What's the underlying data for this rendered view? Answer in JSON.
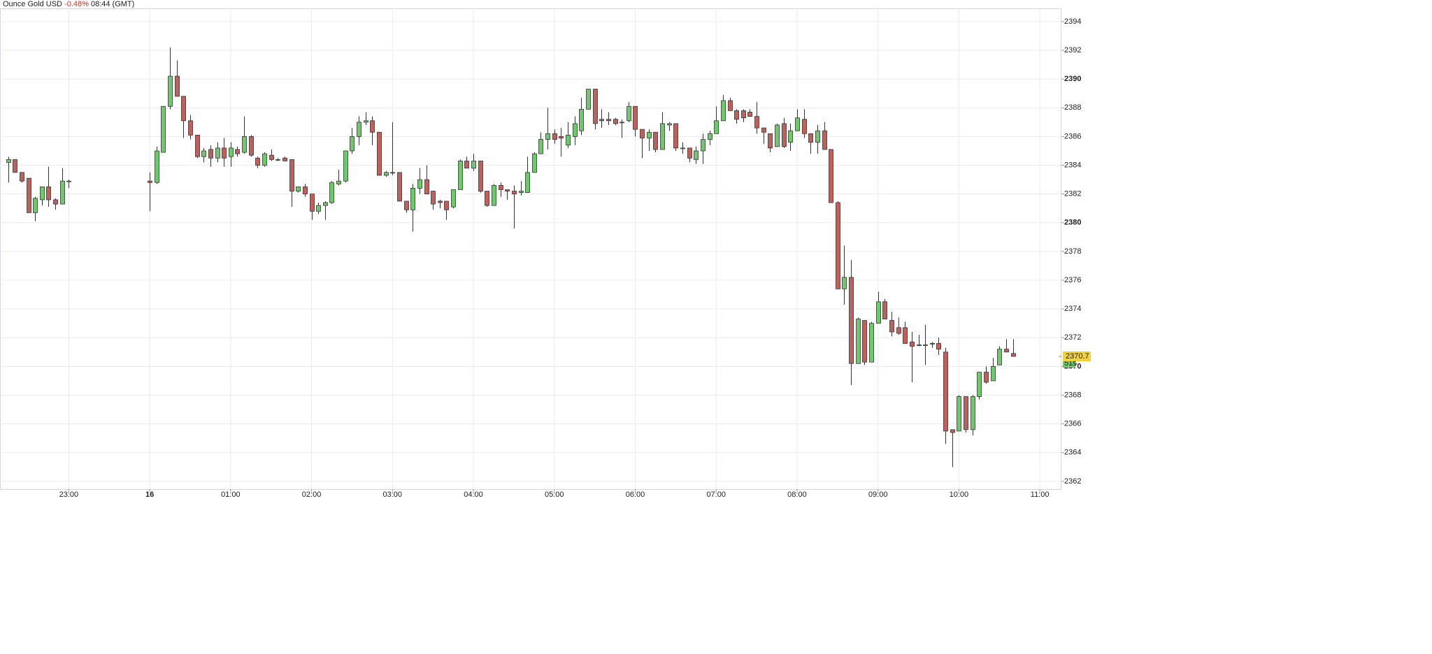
{
  "chart_data": {
    "type": "candlestick",
    "title": "Ounce Gold USD",
    "change": "-0.48%",
    "time": "08:44 (GMT)",
    "up_color": "#6fc96b",
    "down_color": "#c0605b",
    "change_color": "#c0392b",
    "last_price": 2370.7,
    "last_price_color": "#f2d13a",
    "countdown": "51s",
    "countdown_color": "#6fc96b",
    "grid": true,
    "ylim": [
      2361.46,
      2394.92
    ],
    "yticks": [
      2362,
      2364,
      2366,
      2368,
      2370,
      2372,
      2374,
      2376,
      2378,
      2380,
      2382,
      2384,
      2386,
      2388,
      2390,
      2392,
      2394
    ],
    "xlim": [
      "22:09",
      "11:16"
    ],
    "xticks": [
      {
        "value": "23:00",
        "label": "23:00"
      },
      {
        "value": "00:00",
        "label": "16"
      },
      {
        "value": "01:00",
        "label": "01:00"
      },
      {
        "value": "02:00",
        "label": "02:00"
      },
      {
        "value": "03:00",
        "label": "03:00"
      },
      {
        "value": "04:00",
        "label": "04:00"
      },
      {
        "value": "05:00",
        "label": "05:00"
      },
      {
        "value": "06:00",
        "label": "06:00"
      },
      {
        "value": "07:00",
        "label": "07:00"
      },
      {
        "value": "08:00",
        "label": "08:00"
      },
      {
        "value": "09:00",
        "label": "09:00"
      },
      {
        "value": "10:00",
        "label": "10:00"
      },
      {
        "value": "11:00",
        "label": "11:00"
      }
    ],
    "x": [
      "22:15",
      "22:20",
      "22:25",
      "22:30",
      "22:35",
      "22:40",
      "22:45",
      "22:50",
      "22:55",
      "23:00",
      "00:00",
      "00:05",
      "00:10",
      "00:15",
      "00:20",
      "00:25",
      "00:30",
      "00:35",
      "00:40",
      "00:45",
      "00:50",
      "00:55",
      "01:00",
      "01:05",
      "01:10",
      "01:15",
      "01:20",
      "01:25",
      "01:30",
      "01:35",
      "01:40",
      "01:45",
      "01:50",
      "01:55",
      "02:00",
      "02:05",
      "02:10",
      "02:15",
      "02:20",
      "02:25",
      "02:30",
      "02:35",
      "02:40",
      "02:45",
      "02:50",
      "02:55",
      "03:00",
      "03:05",
      "03:10",
      "03:15",
      "03:20",
      "03:25",
      "03:30",
      "03:35",
      "03:40",
      "03:45",
      "03:50",
      "03:55",
      "04:00",
      "04:05",
      "04:10",
      "04:15",
      "04:20",
      "04:25",
      "04:30",
      "04:35",
      "04:40",
      "04:45",
      "04:50",
      "04:55",
      "05:00",
      "05:05",
      "05:10",
      "05:15",
      "05:20",
      "05:25",
      "05:30",
      "05:35",
      "05:40",
      "05:45",
      "05:50",
      "05:55",
      "06:00",
      "06:05",
      "06:10",
      "06:15",
      "06:20",
      "06:25",
      "06:30",
      "06:35",
      "06:40",
      "06:45",
      "06:50",
      "06:55",
      "07:00",
      "07:05",
      "07:10",
      "07:15",
      "07:20",
      "07:25",
      "07:30",
      "07:35",
      "07:40",
      "07:45",
      "07:50",
      "07:55",
      "08:00",
      "08:05",
      "08:10",
      "08:15",
      "08:20",
      "08:25",
      "08:30",
      "08:35",
      "08:40",
      "08:45",
      "08:50",
      "08:55",
      "09:00",
      "09:05",
      "09:10",
      "09:15",
      "09:20",
      "09:25",
      "09:30",
      "09:35",
      "09:40",
      "09:45",
      "09:50",
      "09:55",
      "10:00",
      "10:05",
      "10:10",
      "10:15",
      "10:20",
      "10:25",
      "10:30",
      "10:35",
      "10:40"
    ],
    "open": [
      2384.2,
      2384.4,
      2383.5,
      2383.1,
      2380.7,
      2381.6,
      2382.5,
      2381.6,
      2381.3,
      2382.9,
      2382.9,
      2382.8,
      2384.9,
      2388.1,
      2390.2,
      2388.8,
      2387.1,
      2386.1,
      2384.6,
      2385.1,
      2384.5,
      2385.2,
      2384.6,
      2385.1,
      2384.9,
      2386.0,
      2384.5,
      2384.0,
      2384.7,
      2384.4,
      2384.5,
      2384.4,
      2382.2,
      2382.5,
      2382.0,
      2380.8,
      2381.2,
      2381.4,
      2382.7,
      2382.9,
      2385.0,
      2386.0,
      2387.0,
      2387.1,
      2386.3,
      2383.3,
      2383.5,
      2383.5,
      2381.5,
      2380.9,
      2382.4,
      2383.0,
      2382.2,
      2381.5,
      2381.5,
      2381.1,
      2382.3,
      2384.3,
      2383.8,
      2384.3,
      2382.2,
      2381.2,
      2382.6,
      2382.3,
      2382.2,
      2382.1,
      2382.1,
      2383.5,
      2384.8,
      2385.8,
      2386.2,
      2386.0,
      2385.4,
      2386.0,
      2386.4,
      2387.9,
      2389.3,
      2387.2,
      2387.2,
      2387.2,
      2387.0,
      2387.1,
      2388.1,
      2386.5,
      2385.9,
      2386.3,
      2385.1,
      2386.8,
      2386.9,
      2385.2,
      2385.2,
      2384.4,
      2385.0,
      2385.8,
      2386.2,
      2387.1,
      2388.5,
      2387.8,
      2387.8,
      2387.7,
      2387.4,
      2386.6,
      2386.2,
      2385.3,
      2386.9,
      2385.6,
      2386.4,
      2387.2,
      2386.2,
      2385.6,
      2386.4,
      2385.1,
      2381.4,
      2375.4,
      2376.2,
      2370.2,
      2373.2,
      2370.3,
      2373.0,
      2374.5,
      2373.2,
      2372.7,
      2372.7,
      2371.7,
      2371.5,
      2371.5,
      2371.6,
      2371.6,
      2371.0,
      2365.6,
      2365.5,
      2367.9,
      2365.6,
      2367.9,
      2369.6,
      2369.0,
      2370.1,
      2371.2,
      2370.9
    ],
    "high": [
      2384.6,
      2384.4,
      2383.5,
      2383.1,
      2381.8,
      2382.5,
      2383.9,
      2381.7,
      2383.8,
      2383.0,
      2383.5,
      2385.3,
      2388.1,
      2392.2,
      2391.3,
      2388.8,
      2387.5,
      2386.1,
      2385.2,
      2385.4,
      2385.6,
      2385.9,
      2385.6,
      2385.3,
      2387.4,
      2386.1,
      2384.6,
      2384.9,
      2385.1,
      2384.5,
      2384.6,
      2384.4,
      2382.5,
      2382.7,
      2382.0,
      2381.4,
      2381.5,
      2382.9,
      2383.7,
      2385.0,
      2386.6,
      2387.4,
      2387.7,
      2387.4,
      2386.3,
      2383.6,
      2387.0,
      2383.5,
      2381.5,
      2382.7,
      2383.8,
      2384.0,
      2382.2,
      2381.6,
      2381.5,
      2382.3,
      2384.4,
      2384.6,
      2384.8,
      2384.3,
      2382.2,
      2382.7,
      2382.8,
      2382.3,
      2382.6,
      2382.9,
      2384.6,
      2384.9,
      2386.3,
      2388.0,
      2386.5,
      2386.6,
      2387.0,
      2387.4,
      2388.7,
      2389.3,
      2389.3,
      2387.9,
      2387.7,
      2387.3,
      2387.2,
      2388.4,
      2388.1,
      2386.5,
      2386.5,
      2386.3,
      2387.7,
      2387.0,
      2386.9,
      2385.6,
      2385.2,
      2385.3,
      2386.2,
      2386.4,
      2388.1,
      2388.9,
      2388.7,
      2387.9,
      2387.9,
      2387.9,
      2388.4,
      2386.6,
      2386.2,
      2386.9,
      2387.3,
      2386.9,
      2387.9,
      2387.9,
      2386.2,
      2386.8,
      2387.0,
      2385.1,
      2381.5,
      2378.4,
      2377.4,
      2373.4,
      2373.2,
      2373.1,
      2375.2,
      2374.7,
      2373.8,
      2373.4,
      2373.1,
      2372.4,
      2372.2,
      2372.9,
      2371.7,
      2372.0,
      2371.3,
      2365.6,
      2368.0,
      2367.9,
      2368.0,
      2369.6,
      2370.0,
      2370.6,
      2371.4,
      2371.9,
      2371.9
    ],
    "low": [
      2382.8,
      2383.5,
      2382.8,
      2380.7,
      2380.1,
      2381.2,
      2381.1,
      2380.9,
      2381.3,
      2382.4,
      2380.8,
      2382.7,
      2384.9,
      2387.9,
      2388.8,
      2385.9,
      2385.8,
      2384.5,
      2384.2,
      2383.9,
      2384.2,
      2383.9,
      2383.9,
      2384.6,
      2384.8,
      2384.6,
      2383.8,
      2383.9,
      2384.3,
      2384.3,
      2384.3,
      2381.1,
      2382.1,
      2381.8,
      2380.2,
      2380.6,
      2380.2,
      2381.3,
      2382.6,
      2382.8,
      2384.8,
      2385.4,
      2386.8,
      2385.4,
      2383.3,
      2383.2,
      2383.3,
      2381.5,
      2380.7,
      2379.4,
      2382.0,
      2382.0,
      2380.9,
      2381.0,
      2380.2,
      2381.0,
      2382.3,
      2383.8,
      2383.6,
      2382.1,
      2381.1,
      2381.2,
      2381.8,
      2381.6,
      2379.6,
      2381.9,
      2382.1,
      2383.5,
      2384.8,
      2385.1,
      2385.5,
      2384.6,
      2385.2,
      2385.4,
      2386.1,
      2387.9,
      2386.5,
      2386.6,
      2386.8,
      2386.8,
      2385.9,
      2387.0,
      2386.0,
      2384.5,
      2385.0,
      2384.9,
      2385.1,
      2386.4,
      2385.0,
      2384.8,
      2384.2,
      2384.1,
      2384.1,
      2385.4,
      2386.2,
      2387.1,
      2387.8,
      2386.9,
      2387.0,
      2387.4,
      2386.2,
      2385.5,
      2384.9,
      2385.3,
      2385.2,
      2385.0,
      2386.4,
      2385.9,
      2384.8,
      2384.8,
      2385.1,
      2381.4,
      2375.4,
      2374.3,
      2368.7,
      2370.2,
      2370.1,
      2370.3,
      2373.0,
      2373.3,
      2372.1,
      2372.2,
      2371.6,
      2368.9,
      2371.4,
      2370.1,
      2371.3,
      2370.8,
      2364.6,
      2363.0,
      2365.5,
      2365.4,
      2365.2,
      2367.7,
      2368.8,
      2369.0,
      2370.1,
      2371.0,
      2370.7
    ],
    "close": [
      2384.4,
      2383.5,
      2382.9,
      2380.7,
      2381.7,
      2382.5,
      2381.6,
      2381.3,
      2382.9,
      2382.9,
      2382.8,
      2385.0,
      2388.1,
      2390.2,
      2388.8,
      2387.1,
      2386.1,
      2384.6,
      2385.0,
      2384.5,
      2385.2,
      2384.5,
      2385.2,
      2384.8,
      2386.0,
      2384.7,
      2384.0,
      2384.8,
      2384.4,
      2384.4,
      2384.3,
      2382.2,
      2382.5,
      2382.0,
      2380.8,
      2381.2,
      2381.4,
      2382.8,
      2382.9,
      2385.0,
      2386.0,
      2387.0,
      2387.1,
      2386.3,
      2383.3,
      2383.5,
      2383.5,
      2381.5,
      2380.9,
      2382.4,
      2383.0,
      2382.0,
      2381.3,
      2381.4,
      2380.9,
      2382.3,
      2384.3,
      2383.8,
      2384.3,
      2382.2,
      2381.2,
      2382.6,
      2382.3,
      2382.2,
      2382.0,
      2382.2,
      2383.5,
      2384.8,
      2385.8,
      2386.2,
      2385.8,
      2385.9,
      2386.1,
      2386.9,
      2387.9,
      2389.3,
      2386.9,
      2387.1,
      2387.1,
      2386.9,
      2387.0,
      2388.1,
      2386.5,
      2385.9,
      2386.3,
      2385.1,
      2386.9,
      2386.9,
      2385.2,
      2385.2,
      2384.5,
      2385.0,
      2385.8,
      2386.2,
      2387.1,
      2388.5,
      2387.8,
      2387.2,
      2387.3,
      2387.4,
      2386.6,
      2386.3,
      2385.2,
      2386.8,
      2385.3,
      2386.4,
      2387.3,
      2386.2,
      2385.6,
      2386.4,
      2385.1,
      2381.4,
      2375.4,
      2376.2,
      2370.2,
      2373.3,
      2370.3,
      2373.0,
      2374.5,
      2373.3,
      2372.4,
      2372.3,
      2371.6,
      2371.4,
      2371.5,
      2371.5,
      2371.6,
      2371.2,
      2365.5,
      2365.4,
      2367.9,
      2365.6,
      2367.9,
      2369.6,
      2368.9,
      2370.0,
      2371.2,
      2371.0,
      2370.7
    ]
  }
}
